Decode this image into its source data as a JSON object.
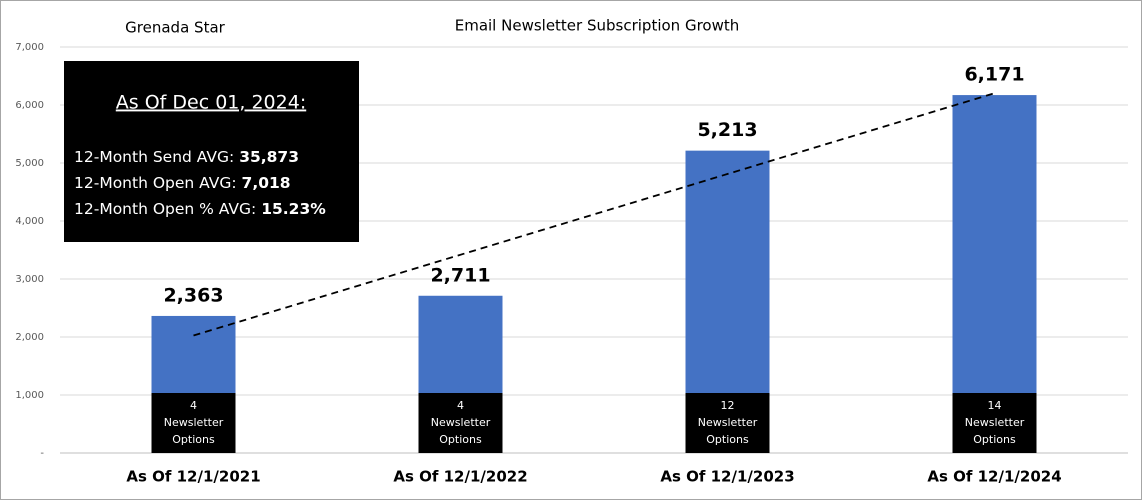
{
  "chart_data": {
    "type": "bar",
    "title": "Email Newsletter Subscription Growth",
    "subtitle": "Grenada Star",
    "categories": [
      "As Of 12/1/2021",
      "As Of 12/1/2022",
      "As Of 12/1/2023",
      "As Of 12/1/2024"
    ],
    "values": [
      2363,
      2711,
      5213,
      6171
    ],
    "value_labels": [
      "2,363",
      "2,711",
      "5,213",
      "6,171"
    ],
    "color": "#4472c4",
    "ylim": [
      0,
      7000
    ],
    "yticks": [
      {
        "value": 0,
        "label": "-"
      },
      {
        "value": 1000,
        "label": "1,000"
      },
      {
        "value": 2000,
        "label": "2,000"
      },
      {
        "value": 3000,
        "label": "3,000"
      },
      {
        "value": 4000,
        "label": "4,000"
      },
      {
        "value": 5000,
        "label": "5,000"
      },
      {
        "value": 6000,
        "label": "6,000"
      },
      {
        "value": 7000,
        "label": "7,000"
      }
    ],
    "grid": true,
    "trendline": "linear",
    "base_boxes": [
      {
        "lines": [
          "4",
          "Newsletter",
          "Options"
        ]
      },
      {
        "lines": [
          "4",
          "Newsletter",
          "Options"
        ]
      },
      {
        "lines": [
          "12",
          "Newsletter",
          "Options"
        ]
      },
      {
        "lines": [
          "14",
          "Newsletter",
          "Options"
        ]
      }
    ],
    "info_box": {
      "title": "As Of Dec 01, 2024:",
      "lines": [
        {
          "label": "12-Month Send AVG:",
          "value": "35,873"
        },
        {
          "label": "12-Month Open AVG:",
          "value": "7,018"
        },
        {
          "label": "12-Month Open % AVG:",
          "value": "15.23%"
        }
      ]
    }
  }
}
